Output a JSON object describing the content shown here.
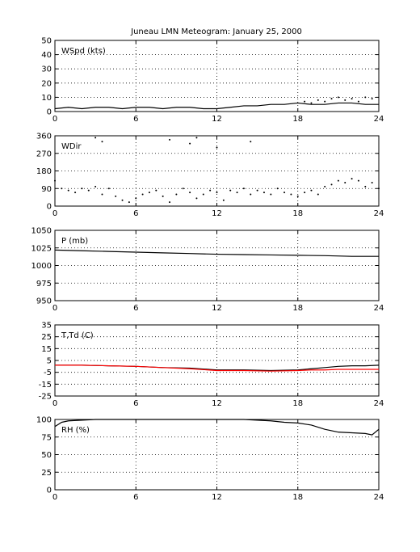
{
  "title": "Juneau LMN Meteogram:    January 25, 2000",
  "colors": {
    "black": "#000000",
    "red": "#ff0000",
    "background": "#ffffff"
  },
  "chart_data": [
    {
      "id": "wspd",
      "type": "line",
      "label": "WSpd (kts)",
      "xlim": [
        0,
        24
      ],
      "ylim": [
        0,
        50
      ],
      "yticks": [
        0,
        10,
        20,
        30,
        40,
        50
      ],
      "xticks": [
        0,
        6,
        12,
        18,
        24
      ],
      "grid": true,
      "series": [
        {
          "color": "#000000",
          "style": "line",
          "x": [
            0,
            1,
            2,
            3,
            4,
            5,
            6,
            7,
            8,
            9,
            10,
            11,
            12,
            13,
            14,
            15,
            16,
            17,
            18,
            19,
            20,
            21,
            22,
            23,
            24
          ],
          "values": [
            2,
            3,
            2,
            3,
            3,
            2,
            3,
            3,
            2,
            3,
            3,
            2,
            2,
            3,
            4,
            4,
            5,
            5,
            6,
            5,
            5,
            6,
            6,
            5,
            5
          ]
        },
        {
          "color": "#000000",
          "style": "dots",
          "x": [
            18.5,
            19,
            19.5,
            20,
            20.5,
            21,
            21.5,
            22,
            22.5,
            23,
            23.5
          ],
          "values": [
            7,
            6,
            8,
            7,
            9,
            10,
            8,
            9,
            7,
            10,
            9
          ]
        }
      ]
    },
    {
      "id": "wdir",
      "type": "scatter",
      "label": "WDir",
      "xlim": [
        0,
        24
      ],
      "ylim": [
        0,
        360
      ],
      "yticks": [
        0,
        90,
        180,
        270,
        360
      ],
      "xticks": [
        0,
        6,
        12,
        18,
        24
      ],
      "grid": true,
      "series": [
        {
          "color": "#000000",
          "x": [
            0,
            0.5,
            1,
            1.5,
            2,
            2.5,
            3,
            3.5,
            4,
            4.5,
            5,
            5.5,
            6,
            6.5,
            7,
            7.5,
            8,
            8.5,
            9,
            9.5,
            10,
            10.5,
            11,
            11.5,
            12,
            12.5,
            13,
            13.5,
            14,
            14.5,
            15,
            15.5,
            16,
            16.5,
            17,
            17.5,
            18,
            18.5,
            19,
            19.5,
            20,
            20.5,
            21,
            21.5,
            22,
            22.5,
            23,
            23.5,
            24
          ],
          "values": [
            130,
            90,
            80,
            70,
            90,
            80,
            100,
            60,
            90,
            50,
            30,
            20,
            40,
            60,
            70,
            80,
            50,
            20,
            60,
            90,
            70,
            40,
            60,
            80,
            70,
            30,
            80,
            70,
            90,
            60,
            80,
            70,
            60,
            90,
            70,
            60,
            50,
            70,
            80,
            60,
            100,
            110,
            130,
            120,
            140,
            130,
            100,
            120,
            90
          ]
        },
        {
          "color": "#000000",
          "x": [
            3,
            3.5,
            8.5,
            10,
            10.5,
            12,
            14.5
          ],
          "values": [
            350,
            330,
            340,
            320,
            350,
            300,
            330
          ]
        }
      ]
    },
    {
      "id": "pressure",
      "type": "line",
      "label": "P (mb)",
      "xlim": [
        0,
        24
      ],
      "ylim": [
        950,
        1050
      ],
      "yticks": [
        950,
        975,
        1000,
        1025,
        1050
      ],
      "xticks": [
        0,
        6,
        12,
        18,
        24
      ],
      "grid": true,
      "series": [
        {
          "color": "#000000",
          "x": [
            0,
            2,
            4,
            6,
            8,
            10,
            12,
            14,
            16,
            18,
            20,
            22,
            24
          ],
          "values": [
            1022,
            1021,
            1020,
            1019,
            1018,
            1017,
            1016,
            1015.5,
            1015,
            1014.5,
            1014,
            1013,
            1013
          ]
        }
      ]
    },
    {
      "id": "temp",
      "type": "line",
      "label": "T,Td (C)",
      "xlim": [
        0,
        24
      ],
      "ylim": [
        -25,
        35
      ],
      "yticks": [
        -25,
        -15,
        -5,
        5,
        15,
        25,
        35
      ],
      "xticks": [
        0,
        6,
        12,
        18,
        24
      ],
      "grid": true,
      "series": [
        {
          "color": "#000000",
          "x": [
            0,
            2,
            4,
            6,
            8,
            10,
            12,
            14,
            16,
            18,
            19,
            20,
            21,
            22,
            23,
            24
          ],
          "values": [
            1,
            1,
            0.5,
            0,
            -1,
            -1.5,
            -3,
            -3,
            -3.5,
            -3,
            -2,
            -1,
            0,
            0.5,
            0.5,
            1
          ]
        },
        {
          "color": "#ff0000",
          "x": [
            0,
            2,
            4,
            6,
            8,
            10,
            12,
            14,
            16,
            18,
            19,
            20,
            21,
            22,
            23,
            24
          ],
          "values": [
            1,
            1,
            0.5,
            0,
            -1,
            -2,
            -3.5,
            -3.5,
            -4,
            -3.5,
            -3,
            -3,
            -2.5,
            -2.5,
            -2.5,
            -2.5
          ]
        }
      ]
    },
    {
      "id": "rh",
      "type": "line",
      "label": "RH (%)",
      "xlim": [
        0,
        24
      ],
      "ylim": [
        0,
        100
      ],
      "yticks": [
        0,
        25,
        50,
        75,
        100
      ],
      "xticks": [
        0,
        6,
        12,
        18,
        24
      ],
      "grid": true,
      "series": [
        {
          "color": "#000000",
          "x": [
            0,
            0.5,
            1,
            2,
            3,
            4,
            6,
            8,
            10,
            12,
            14,
            16,
            17,
            18,
            19,
            20,
            21,
            22,
            23,
            23.5,
            24
          ],
          "values": [
            90,
            96,
            98,
            99,
            100,
            100,
            100,
            100,
            100,
            100,
            100,
            98,
            96,
            95,
            92,
            86,
            82,
            81,
            80,
            78,
            86
          ]
        }
      ]
    }
  ]
}
